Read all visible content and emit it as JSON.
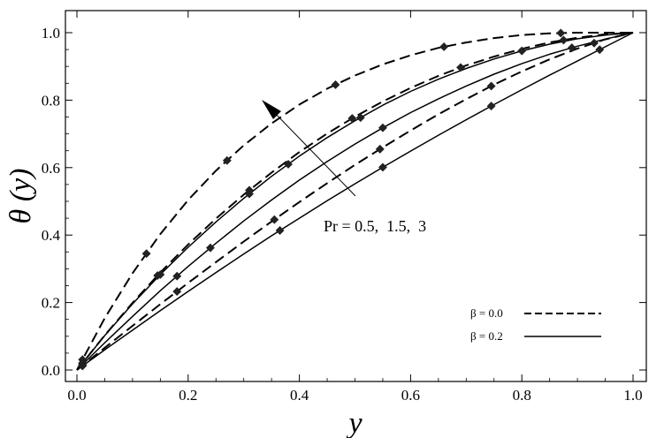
{
  "chart_data": {
    "type": "line",
    "xlabel": "y",
    "ylabel": "θ (y)",
    "xlim": [
      0,
      1
    ],
    "ylim": [
      0,
      1
    ],
    "x_ticks": [
      "0.0",
      "0.2",
      "0.4",
      "0.6",
      "0.8",
      "1.0"
    ],
    "y_ticks": [
      "0.0",
      "0.2",
      "0.4",
      "0.6",
      "0.8",
      "1.0"
    ],
    "grid": false,
    "annotation": "Pr = 0.5,  1.5,  3",
    "legend_position": "bottom-right",
    "legend": [
      {
        "label": "β = 0.0",
        "style": "dashed"
      },
      {
        "label": "β = 0.2",
        "style": "solid"
      }
    ],
    "series": [
      {
        "beta": 0.0,
        "Pr": 3,
        "style": "dashed",
        "x": [
          0,
          0.05,
          0.1,
          0.15,
          0.2,
          0.25,
          0.3,
          0.35,
          0.4,
          0.45,
          0.5,
          0.55,
          0.6,
          0.65,
          0.7,
          0.75,
          0.8,
          0.85,
          0.9,
          0.95,
          1.0
        ],
        "y": [
          0,
          0.154,
          0.287,
          0.403,
          0.504,
          0.591,
          0.666,
          0.731,
          0.787,
          0.834,
          0.873,
          0.906,
          0.933,
          0.955,
          0.971,
          0.984,
          0.993,
          0.998,
          1.0,
          1.0,
          1.0
        ]
      },
      {
        "beta": 0.0,
        "Pr": 1.5,
        "style": "dashed",
        "x": [
          0,
          0.05,
          0.1,
          0.15,
          0.2,
          0.25,
          0.3,
          0.35,
          0.4,
          0.45,
          0.5,
          0.55,
          0.6,
          0.65,
          0.7,
          0.75,
          0.8,
          0.85,
          0.9,
          0.95,
          1.0
        ],
        "y": [
          0,
          0.103,
          0.199,
          0.289,
          0.372,
          0.449,
          0.52,
          0.585,
          0.646,
          0.701,
          0.751,
          0.796,
          0.836,
          0.872,
          0.903,
          0.929,
          0.952,
          0.971,
          0.985,
          0.995,
          1.0
        ]
      },
      {
        "beta": 0.0,
        "Pr": 0.5,
        "style": "dashed",
        "x": [
          0,
          0.05,
          0.1,
          0.15,
          0.2,
          0.25,
          0.3,
          0.35,
          0.4,
          0.45,
          0.5,
          0.55,
          0.6,
          0.65,
          0.7,
          0.75,
          0.8,
          0.85,
          0.9,
          0.95,
          1.0
        ],
        "y": [
          0,
          0.066,
          0.131,
          0.195,
          0.258,
          0.32,
          0.381,
          0.44,
          0.498,
          0.554,
          0.608,
          0.66,
          0.71,
          0.758,
          0.803,
          0.846,
          0.885,
          0.921,
          0.953,
          0.98,
          1.0
        ]
      },
      {
        "beta": 0.2,
        "Pr": 3,
        "style": "solid",
        "x": [
          0,
          0.05,
          0.1,
          0.15,
          0.2,
          0.25,
          0.3,
          0.35,
          0.4,
          0.45,
          0.5,
          0.55,
          0.6,
          0.65,
          0.7,
          0.75,
          0.8,
          0.85,
          0.9,
          0.95,
          1.0
        ],
        "y": [
          0,
          0.102,
          0.196,
          0.283,
          0.364,
          0.439,
          0.509,
          0.574,
          0.634,
          0.689,
          0.739,
          0.785,
          0.826,
          0.862,
          0.894,
          0.922,
          0.946,
          0.966,
          0.982,
          0.993,
          1.0
        ]
      },
      {
        "beta": 0.2,
        "Pr": 1.5,
        "style": "solid",
        "x": [
          0,
          0.05,
          0.1,
          0.15,
          0.2,
          0.25,
          0.3,
          0.35,
          0.4,
          0.45,
          0.5,
          0.55,
          0.6,
          0.65,
          0.7,
          0.75,
          0.8,
          0.85,
          0.9,
          0.95,
          1.0
        ],
        "y": [
          0,
          0.081,
          0.159,
          0.235,
          0.307,
          0.376,
          0.442,
          0.504,
          0.563,
          0.618,
          0.67,
          0.718,
          0.763,
          0.804,
          0.842,
          0.877,
          0.908,
          0.936,
          0.96,
          0.981,
          1.0
        ]
      },
      {
        "beta": 0.2,
        "Pr": 0.5,
        "style": "solid",
        "x": [
          0,
          0.05,
          0.1,
          0.15,
          0.2,
          0.25,
          0.3,
          0.35,
          0.4,
          0.45,
          0.5,
          0.55,
          0.6,
          0.65,
          0.7,
          0.75,
          0.8,
          0.85,
          0.9,
          0.95,
          1.0
        ],
        "y": [
          0,
          0.06,
          0.118,
          0.176,
          0.233,
          0.289,
          0.344,
          0.398,
          0.45,
          0.502,
          0.552,
          0.601,
          0.649,
          0.696,
          0.742,
          0.787,
          0.831,
          0.874,
          0.916,
          0.958,
          1.0
        ]
      }
    ],
    "markers": [
      {
        "series": 0,
        "x": [
          0.01,
          0.125,
          0.27,
          0.465,
          0.66,
          0.87
        ]
      },
      {
        "series": 1,
        "x": [
          0.01,
          0.145,
          0.31,
          0.495,
          0.69,
          0.875
        ]
      },
      {
        "series": 2,
        "x": [
          0.01,
          0.18,
          0.355,
          0.545,
          0.745,
          0.93
        ]
      },
      {
        "series": 3,
        "x": [
          0.01,
          0.15,
          0.31,
          0.38,
          0.51,
          0.8
        ]
      },
      {
        "series": 4,
        "x": [
          0.01,
          0.18,
          0.24,
          0.55,
          0.89
        ]
      },
      {
        "series": 5,
        "x": [
          0.01,
          0.365,
          0.55,
          0.745,
          0.94
        ]
      }
    ]
  }
}
